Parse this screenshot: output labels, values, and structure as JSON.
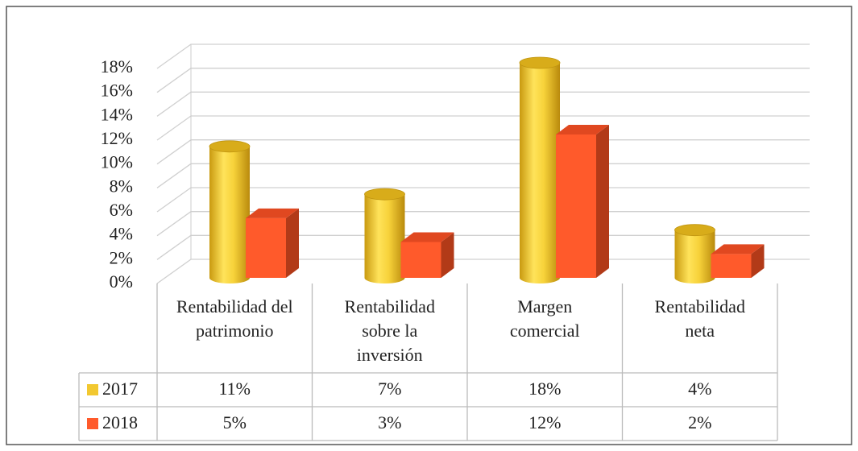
{
  "chart_data": {
    "type": "bar3d",
    "categories": [
      "Rentabilidad del patrimonio",
      "Rentabilidad sobre la inversión",
      "Margen comercial",
      "Rentabilidad neta"
    ],
    "series": [
      {
        "name": "2017",
        "color": "#f2c830",
        "values": [
          11,
          7,
          18,
          4
        ],
        "value_labels": [
          "11%",
          "7%",
          "18%",
          "4%"
        ]
      },
      {
        "name": "2018",
        "color": "#ff5a2b",
        "values": [
          5,
          3,
          12,
          2
        ],
        "value_labels": [
          "5%",
          "3%",
          "12%",
          "2%"
        ]
      }
    ],
    "ylim": [
      0,
      18
    ],
    "yticks": [
      {
        "value": 0,
        "label": "0%"
      },
      {
        "value": 2,
        "label": "2%"
      },
      {
        "value": 4,
        "label": "4%"
      },
      {
        "value": 6,
        "label": "6%"
      },
      {
        "value": 8,
        "label": "8%"
      },
      {
        "value": 10,
        "label": "10%"
      },
      {
        "value": 12,
        "label": "12%"
      },
      {
        "value": 14,
        "label": "14%"
      },
      {
        "value": 16,
        "label": "16%"
      },
      {
        "value": 18,
        "label": "18%"
      }
    ],
    "grid": true
  }
}
